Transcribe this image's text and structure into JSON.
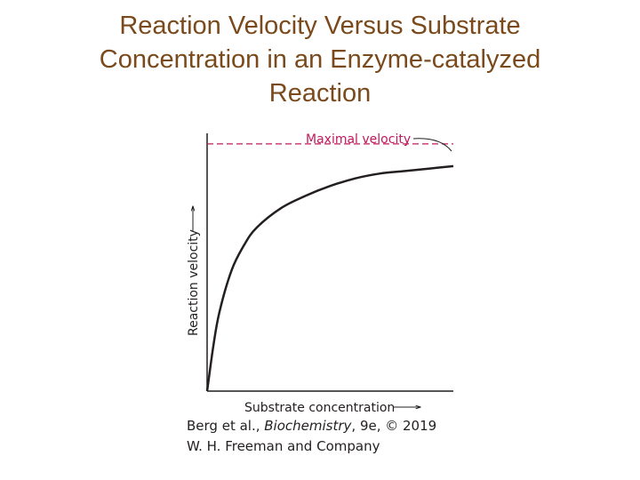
{
  "slide": {
    "title_lines": [
      "Reaction Velocity Versus Substrate",
      "Concentration in an Enzyme-catalyzed",
      "Reaction"
    ]
  },
  "chart_data": {
    "type": "line",
    "title": "",
    "xlabel": "Substrate concentration",
    "ylabel": "Reaction velocity",
    "xlim": [
      0,
      10
    ],
    "ylim": [
      0,
      1.05
    ],
    "series": [
      {
        "curve": "michaelis-menten",
        "x": [
          0,
          0.25,
          0.5,
          1,
          1.5,
          2,
          3,
          4,
          5,
          6,
          7,
          8,
          9,
          10
        ],
        "values": [
          0,
          0.18,
          0.32,
          0.49,
          0.59,
          0.66,
          0.74,
          0.79,
          0.83,
          0.86,
          0.88,
          0.89,
          0.9,
          0.91
        ]
      }
    ],
    "annotations": [
      {
        "text": "Maximal velocity",
        "y": 1.0,
        "style": "dashed-line",
        "color": "#c2185b"
      }
    ],
    "colors": {
      "curve": "#231f20",
      "axes": "#231f20",
      "vmax": "#c2185b"
    }
  },
  "citation": {
    "line1_prefix": "Berg et al., ",
    "line1_book": "Biochemistry",
    "line1_suffix": ", 9e, © 2019",
    "line2": "W. H. Freeman and Company"
  }
}
